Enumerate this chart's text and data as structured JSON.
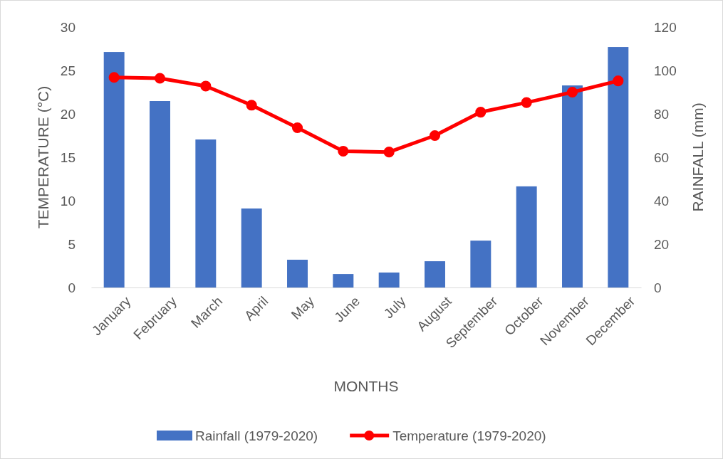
{
  "chart_data": {
    "type": "bar",
    "xlabel": "MONTHS",
    "ylabel": "TEMPERATURE (°C)",
    "y2label": "RAINFALL (mm)",
    "categories": [
      "January",
      "February",
      "March",
      "April",
      "May",
      "June",
      "July",
      "August",
      "September",
      "October",
      "November",
      "December"
    ],
    "series": [
      {
        "name": "Rainfall (1979-2020)",
        "axis": "y2",
        "color": "#4472c4",
        "values": [
          108.5,
          85.9,
          68.2,
          36.4,
          12.8,
          6.2,
          6.9,
          12.1,
          21.6,
          46.6,
          93.1,
          110.8
        ]
      },
      {
        "name": "Temperature (1979-2020)",
        "type": "line",
        "color": "#ff0000",
        "marker": "circle",
        "values": [
          24.2,
          24.1,
          23.2,
          21.0,
          18.4,
          15.7,
          15.6,
          17.5,
          20.2,
          21.3,
          22.5,
          23.8
        ]
      }
    ],
    "ylim": [
      0,
      30
    ],
    "yticks": [
      0,
      5,
      10,
      15,
      20,
      25,
      30
    ],
    "y2lim": [
      0,
      120
    ],
    "y2ticks": [
      0,
      20,
      40,
      60,
      80,
      100,
      120
    ],
    "grid": false,
    "legend": "bottom"
  }
}
